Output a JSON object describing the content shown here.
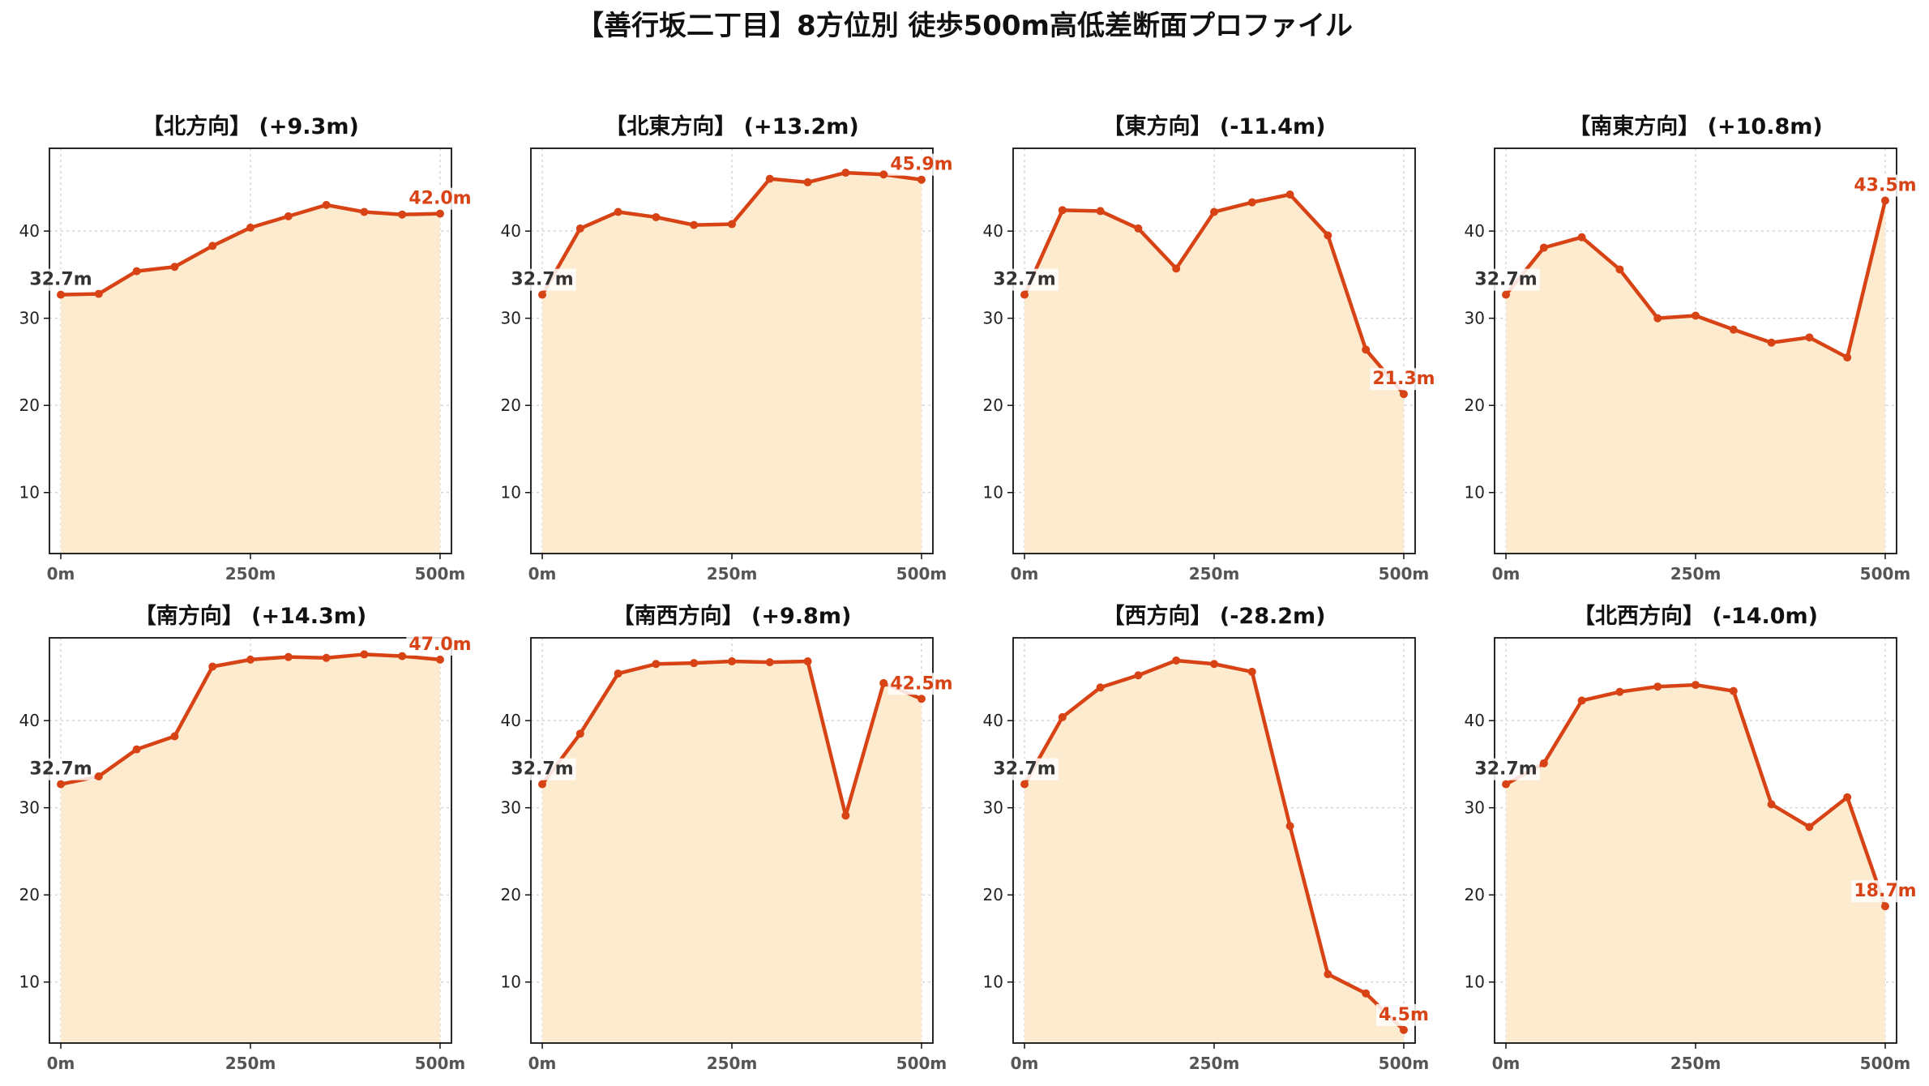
{
  "figure": {
    "title": "【善行坂二丁目】8方位別 徒歩500m高低差断面プロファイル",
    "colors": {
      "line": "#d84315",
      "fill": "#fdebd0",
      "grid": "#cccccc",
      "axis": "#111111"
    }
  },
  "chart_data": [
    {
      "type": "area",
      "title": "【北方向】 (+9.3m)",
      "x": [
        0,
        50,
        100,
        150,
        200,
        250,
        300,
        350,
        400,
        450,
        500
      ],
      "y": [
        32.7,
        32.8,
        35.4,
        35.9,
        38.3,
        40.4,
        41.7,
        43.0,
        42.2,
        41.9,
        42.0
      ],
      "xticks": [
        0,
        250,
        500
      ],
      "xtick_labels": [
        "0m",
        "250m",
        "500m"
      ],
      "yticks": [
        10,
        20,
        30,
        40
      ],
      "xlim": [
        -15,
        515
      ],
      "ylim": [
        3,
        49.5
      ],
      "grid": true,
      "start_label": "32.7m",
      "end_label": "42.0m"
    },
    {
      "type": "area",
      "title": "【北東方向】 (+13.2m)",
      "x": [
        0,
        50,
        100,
        150,
        200,
        250,
        300,
        350,
        400,
        450,
        500
      ],
      "y": [
        32.7,
        40.3,
        42.2,
        41.6,
        40.7,
        40.8,
        46.0,
        45.6,
        46.7,
        46.5,
        45.9
      ],
      "xticks": [
        0,
        250,
        500
      ],
      "xtick_labels": [
        "0m",
        "250m",
        "500m"
      ],
      "yticks": [
        10,
        20,
        30,
        40
      ],
      "xlim": [
        -15,
        515
      ],
      "ylim": [
        3,
        49.5
      ],
      "grid": true,
      "start_label": "32.7m",
      "end_label": "45.9m"
    },
    {
      "type": "area",
      "title": "【東方向】 (-11.4m)",
      "x": [
        0,
        50,
        100,
        150,
        200,
        250,
        300,
        350,
        400,
        450,
        500
      ],
      "y": [
        32.7,
        42.4,
        42.3,
        40.3,
        35.7,
        42.2,
        43.3,
        44.2,
        39.5,
        26.4,
        21.3
      ],
      "xticks": [
        0,
        250,
        500
      ],
      "xtick_labels": [
        "0m",
        "250m",
        "500m"
      ],
      "yticks": [
        10,
        20,
        30,
        40
      ],
      "xlim": [
        -15,
        515
      ],
      "ylim": [
        3,
        49.5
      ],
      "grid": true,
      "start_label": "32.7m",
      "end_label": "21.3m"
    },
    {
      "type": "area",
      "title": "【南東方向】 (+10.8m)",
      "x": [
        0,
        50,
        100,
        150,
        200,
        250,
        300,
        350,
        400,
        450,
        500
      ],
      "y": [
        32.7,
        38.1,
        39.3,
        35.6,
        30.0,
        30.3,
        28.7,
        27.2,
        27.8,
        25.5,
        43.5
      ],
      "xticks": [
        0,
        250,
        500
      ],
      "xtick_labels": [
        "0m",
        "250m",
        "500m"
      ],
      "yticks": [
        10,
        20,
        30,
        40
      ],
      "xlim": [
        -15,
        515
      ],
      "ylim": [
        3,
        49.5
      ],
      "grid": true,
      "start_label": "32.7m",
      "end_label": "43.5m"
    },
    {
      "type": "area",
      "title": "【南方向】 (+14.3m)",
      "x": [
        0,
        50,
        100,
        150,
        200,
        250,
        300,
        350,
        400,
        450,
        500
      ],
      "y": [
        32.7,
        33.6,
        36.7,
        38.2,
        46.2,
        47.0,
        47.3,
        47.2,
        47.6,
        47.4,
        47.0
      ],
      "xticks": [
        0,
        250,
        500
      ],
      "xtick_labels": [
        "0m",
        "250m",
        "500m"
      ],
      "yticks": [
        10,
        20,
        30,
        40
      ],
      "xlim": [
        -15,
        515
      ],
      "ylim": [
        3,
        49.5
      ],
      "grid": true,
      "start_label": "32.7m",
      "end_label": "47.0m"
    },
    {
      "type": "area",
      "title": "【南西方向】 (+9.8m)",
      "x": [
        0,
        50,
        100,
        150,
        200,
        250,
        300,
        350,
        400,
        450,
        500
      ],
      "y": [
        32.7,
        38.5,
        45.4,
        46.5,
        46.6,
        46.8,
        46.7,
        46.8,
        29.1,
        44.3,
        42.5
      ],
      "xticks": [
        0,
        250,
        500
      ],
      "xtick_labels": [
        "0m",
        "250m",
        "500m"
      ],
      "yticks": [
        10,
        20,
        30,
        40
      ],
      "xlim": [
        -15,
        515
      ],
      "ylim": [
        3,
        49.5
      ],
      "grid": true,
      "start_label": "32.7m",
      "end_label": "42.5m"
    },
    {
      "type": "area",
      "title": "【西方向】 (-28.2m)",
      "x": [
        0,
        50,
        100,
        150,
        200,
        250,
        300,
        350,
        400,
        450,
        500
      ],
      "y": [
        32.7,
        40.4,
        43.8,
        45.2,
        46.9,
        46.5,
        45.6,
        27.9,
        10.9,
        8.7,
        4.5
      ],
      "xticks": [
        0,
        250,
        500
      ],
      "xtick_labels": [
        "0m",
        "250m",
        "500m"
      ],
      "yticks": [
        10,
        20,
        30,
        40
      ],
      "xlim": [
        -15,
        515
      ],
      "ylim": [
        3,
        49.5
      ],
      "grid": true,
      "start_label": "32.7m",
      "end_label": "4.5m"
    },
    {
      "type": "area",
      "title": "【北西方向】 (-14.0m)",
      "x": [
        0,
        50,
        100,
        150,
        200,
        250,
        300,
        350,
        400,
        450,
        500
      ],
      "y": [
        32.7,
        35.1,
        42.3,
        43.3,
        43.9,
        44.1,
        43.4,
        30.4,
        27.8,
        31.2,
        18.7
      ],
      "xticks": [
        0,
        250,
        500
      ],
      "xtick_labels": [
        "0m",
        "250m",
        "500m"
      ],
      "yticks": [
        10,
        20,
        30,
        40
      ],
      "xlim": [
        -15,
        515
      ],
      "ylim": [
        3,
        49.5
      ],
      "grid": true,
      "start_label": "32.7m",
      "end_label": "18.7m"
    }
  ]
}
